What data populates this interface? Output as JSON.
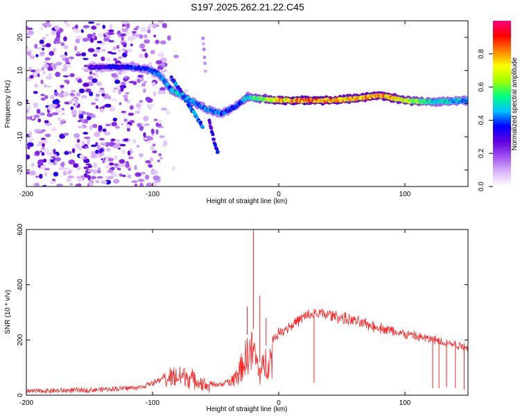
{
  "title": "S197.2025.262.21.22.C45",
  "chart_data": [
    {
      "type": "heatmap",
      "name": "spectrogram",
      "xlabel": "Height of straight line (km)",
      "ylabel": "Frequency (Hz)",
      "xlim": [
        -200,
        150
      ],
      "ylim": [
        -25,
        25
      ],
      "x_ticks": [
        -200,
        -100,
        0,
        100
      ],
      "y_ticks": [
        -20,
        -10,
        0,
        10,
        20
      ],
      "colorbar": {
        "label": "Normalized spectral amplitude",
        "range": [
          0.0,
          1.0
        ],
        "ticks": [
          0.0,
          0.2,
          0.4,
          0.6,
          0.8
        ],
        "tick_labels": [
          "0.0",
          "0.2",
          "0.4",
          "0.6",
          "0.8"
        ],
        "colors": [
          "#ffffff",
          "#d8b4f8",
          "#a050f0",
          "#6000e0",
          "#0000ff",
          "#00c0ff",
          "#00ff80",
          "#a0ff00",
          "#ffff00",
          "#ff8000",
          "#ff0000",
          "#ff0080"
        ]
      },
      "ridge": {
        "description": "main spectral ridge (frequency in Hz vs height in km)",
        "x": [
          -150,
          -120,
          -105,
          -95,
          -85,
          -75,
          -65,
          -55,
          -45,
          -35,
          -25,
          -15,
          0,
          20,
          40,
          60,
          80,
          100,
          120,
          150
        ],
        "y": [
          11,
          11,
          10.5,
          9,
          4,
          2,
          0,
          -2,
          -3,
          -1,
          2,
          1.5,
          1,
          1,
          1,
          1.5,
          2.5,
          1,
          0.5,
          1
        ],
        "amplitude": [
          0.3,
          0.35,
          0.4,
          0.4,
          0.45,
          0.5,
          0.45,
          0.45,
          0.4,
          0.35,
          0.5,
          0.6,
          0.75,
          0.85,
          0.8,
          0.75,
          0.8,
          0.7,
          0.5,
          0.45
        ]
      },
      "branches": [
        {
          "x": [
            -85,
            -75,
            -65,
            -60
          ],
          "y": [
            8,
            2,
            -4,
            -7
          ],
          "amplitude": 0.45
        },
        {
          "x": [
            -55,
            -52,
            -50,
            -48
          ],
          "y": [
            -5,
            -10,
            -13,
            -15
          ],
          "amplitude": 0.35
        },
        {
          "x": [
            -60,
            -58
          ],
          "y": [
            20,
            10
          ],
          "amplitude": 0.15
        }
      ],
      "noise_region": {
        "x": [
          -200,
          -90
        ],
        "y": [
          -25,
          25
        ],
        "amplitude_range": [
          0.02,
          0.35
        ]
      }
    },
    {
      "type": "line",
      "name": "snr",
      "xlabel": "Height of straight line (km)",
      "ylabel": "SNR (10 * v/v)",
      "xlim": [
        -200,
        150
      ],
      "ylim": [
        0,
        600
      ],
      "x_ticks": [
        -200,
        -100,
        0,
        100
      ],
      "y_ticks": [
        0,
        200,
        400,
        600
      ],
      "color": "#ff2020",
      "envelope_x": [
        -200,
        -150,
        -110,
        -95,
        -85,
        -75,
        -65,
        -55,
        -45,
        -38,
        -30,
        -25,
        -20,
        -15,
        -10,
        -5,
        0,
        10,
        20,
        30,
        40,
        60,
        80,
        100,
        120,
        140,
        150
      ],
      "envelope_y": [
        15,
        20,
        30,
        55,
        100,
        110,
        80,
        45,
        40,
        65,
        140,
        220,
        240,
        120,
        180,
        210,
        240,
        270,
        300,
        315,
        310,
        285,
        260,
        235,
        215,
        195,
        185
      ],
      "spikes": [
        {
          "x": -25,
          "y": 320
        },
        {
          "x": -20,
          "y": 600
        },
        {
          "x": -15,
          "y": 360
        },
        {
          "x": -10,
          "y": 280
        },
        {
          "x": 28,
          "y": 45
        },
        {
          "x": 122,
          "y": 25
        },
        {
          "x": 127,
          "y": 25
        },
        {
          "x": 133,
          "y": 30
        },
        {
          "x": 140,
          "y": 25
        },
        {
          "x": 147,
          "y": 20
        }
      ]
    }
  ]
}
